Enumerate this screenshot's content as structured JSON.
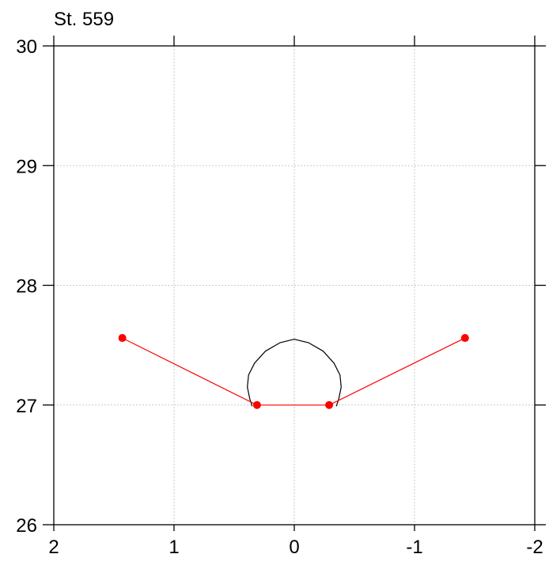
{
  "chart_data": {
    "type": "scatter",
    "title": "St. 559",
    "xlabel": "",
    "ylabel": "",
    "xlim": [
      2,
      -2
    ],
    "ylim": [
      26,
      30
    ],
    "x_ticks": [
      2,
      1,
      0,
      -1,
      -2
    ],
    "x_tick_labels": [
      "2",
      "1",
      "0",
      "-1",
      "-2"
    ],
    "y_ticks": [
      26,
      27,
      28,
      29,
      30
    ],
    "y_tick_labels": [
      "26",
      "27",
      "28",
      "29",
      "30"
    ],
    "grid": true,
    "axis_color": "#000000",
    "grid_color": "#bbbbbb",
    "series": [
      {
        "kind": "line",
        "color": "#000000",
        "points": [
          [
            0.35,
            26.99
          ],
          [
            0.37,
            27.05
          ],
          [
            0.39,
            27.15
          ],
          [
            0.38,
            27.25
          ],
          [
            0.33,
            27.35
          ],
          [
            0.24,
            27.45
          ],
          [
            0.12,
            27.52
          ],
          [
            0.0,
            27.55
          ],
          [
            -0.12,
            27.52
          ],
          [
            -0.24,
            27.45
          ],
          [
            -0.33,
            27.35
          ],
          [
            -0.38,
            27.25
          ],
          [
            -0.39,
            27.15
          ],
          [
            -0.37,
            27.05
          ],
          [
            -0.35,
            26.99
          ]
        ]
      },
      {
        "kind": "line+markers",
        "color": "#ff0000",
        "points": [
          [
            1.43,
            27.56
          ],
          [
            0.31,
            27.0
          ],
          [
            -0.29,
            27.0
          ],
          [
            -1.42,
            27.56
          ]
        ]
      }
    ]
  }
}
